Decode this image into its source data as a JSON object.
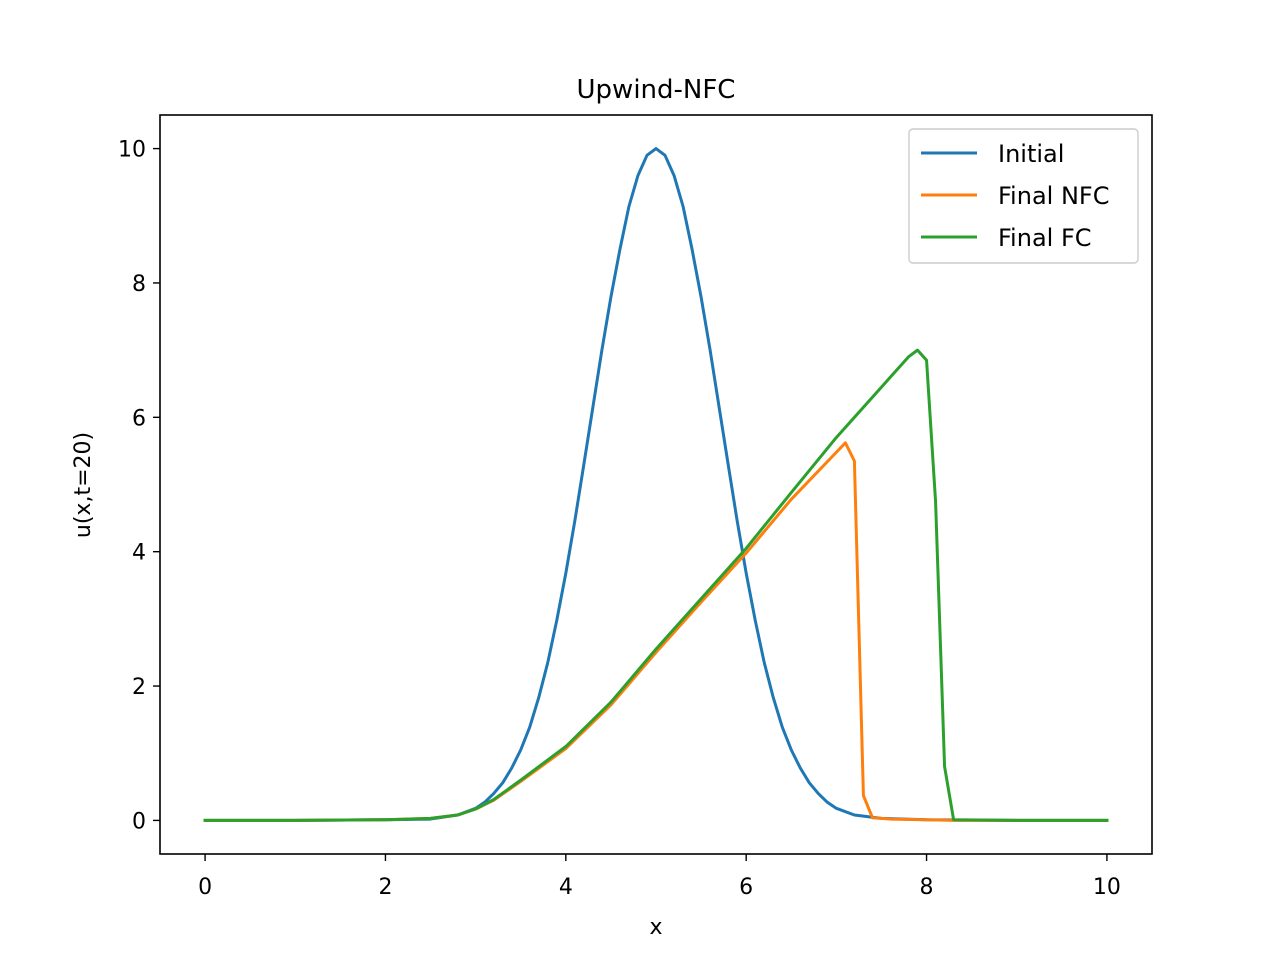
{
  "chart_data": {
    "type": "line",
    "title": "Upwind-NFC",
    "xlabel": "x",
    "ylabel": "u(x,t=20)",
    "xlim": [
      -0.5,
      10.5
    ],
    "ylim": [
      -0.5,
      10.5
    ],
    "xticks": [
      0,
      2,
      4,
      6,
      8,
      10
    ],
    "yticks": [
      0,
      2,
      4,
      6,
      8,
      10
    ],
    "xtick_labels": [
      "0",
      "2",
      "4",
      "6",
      "8",
      "10"
    ],
    "ytick_labels": [
      "0",
      "2",
      "4",
      "6",
      "8",
      "10"
    ],
    "grid": false,
    "legend_position": "top-right",
    "series": [
      {
        "name": "Initial",
        "color": "#1f77b4",
        "x": [
          0,
          1,
          2,
          2.5,
          2.8,
          3.0,
          3.1,
          3.2,
          3.3,
          3.4,
          3.5,
          3.6,
          3.7,
          3.8,
          3.9,
          4.0,
          4.1,
          4.2,
          4.3,
          4.4,
          4.5,
          4.6,
          4.7,
          4.8,
          4.9,
          5.0,
          5.1,
          5.2,
          5.3,
          5.4,
          5.5,
          5.6,
          5.7,
          5.8,
          5.9,
          6.0,
          6.1,
          6.2,
          6.3,
          6.4,
          6.5,
          6.6,
          6.7,
          6.8,
          6.9,
          7.0,
          7.2,
          7.5,
          8,
          9,
          10
        ],
        "y": [
          0,
          0,
          0.01,
          0.02,
          0.08,
          0.18,
          0.27,
          0.4,
          0.56,
          0.78,
          1.05,
          1.39,
          1.83,
          2.35,
          2.98,
          3.68,
          4.46,
          5.3,
          6.15,
          7.0,
          7.79,
          8.5,
          9.14,
          9.6,
          9.9,
          10.0,
          9.9,
          9.6,
          9.14,
          8.5,
          7.79,
          7.0,
          6.15,
          5.3,
          4.46,
          3.68,
          2.98,
          2.35,
          1.83,
          1.39,
          1.05,
          0.78,
          0.56,
          0.4,
          0.27,
          0.18,
          0.08,
          0.03,
          0.01,
          0,
          0
        ]
      },
      {
        "name": "Final NFC",
        "color": "#ff7f0e",
        "x": [
          0,
          1,
          2,
          2.5,
          2.8,
          3.0,
          3.2,
          3.5,
          4.0,
          4.5,
          5.0,
          5.5,
          6.0,
          6.5,
          7.0,
          7.1,
          7.2,
          7.3,
          7.4,
          7.6,
          8.0,
          8.3,
          9,
          10
        ],
        "y": [
          0,
          0,
          0.01,
          0.03,
          0.08,
          0.17,
          0.3,
          0.58,
          1.07,
          1.72,
          2.5,
          3.25,
          3.98,
          4.78,
          5.48,
          5.62,
          5.35,
          0.37,
          0.04,
          0.02,
          0.01,
          0,
          0,
          0
        ]
      },
      {
        "name": "Final FC",
        "color": "#2ca02c",
        "x": [
          0,
          1,
          2,
          2.5,
          2.8,
          3.0,
          3.2,
          3.5,
          4.0,
          4.5,
          5.0,
          5.5,
          6.0,
          6.5,
          7.0,
          7.5,
          7.8,
          7.9,
          8.0,
          8.1,
          8.2,
          8.3,
          9,
          10
        ],
        "y": [
          0,
          0,
          0.01,
          0.03,
          0.08,
          0.17,
          0.31,
          0.6,
          1.1,
          1.76,
          2.55,
          3.3,
          4.05,
          4.88,
          5.7,
          6.45,
          6.9,
          7.0,
          6.85,
          4.75,
          0.8,
          0.01,
          0,
          0
        ]
      }
    ]
  }
}
